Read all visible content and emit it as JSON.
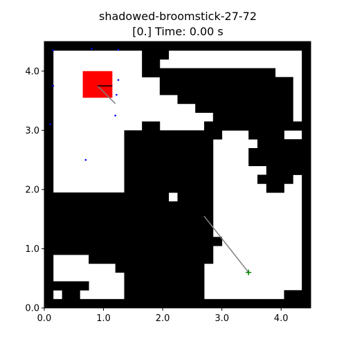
{
  "chart_data": {
    "type": "heatmap",
    "title": "shadowed-broomstick-27-72",
    "subtitle": "[0.] Time: 0.00 s",
    "xlabel": "",
    "ylabel": "",
    "xlim": [
      0.0,
      4.5
    ],
    "ylim": [
      0.0,
      4.5
    ],
    "xticks": [
      "0.0",
      "1.0",
      "2.0",
      "3.0",
      "4.0"
    ],
    "yticks": [
      "0.0",
      "1.0",
      "2.0",
      "3.0",
      "4.0"
    ],
    "grid": false,
    "occupancy_grid": {
      "cols": 30,
      "rows": 30,
      "cell_size": 0.15,
      "origin": [
        0.0,
        0.0
      ],
      "rows_top_to_bottom": [
        "111111111111111111111111111111",
        "100000000001110000000000000001",
        "100000000001100000000000000001",
        "100000000001111111111111110001",
        "100000000000011111111111111101",
        "100000000000011111111111111101",
        "100000000000000111111111111101",
        "100000000000000001111111111101",
        "100000000000000000011111111101",
        "100000000001100000111111111111",
        "100000000111111111110001111001",
        "100000000111111111100000111111",
        "100000000111111111100001111111",
        "100000000111111111100001111111",
        "100000000111111111100000011111",
        "100000000111111111100000111101",
        "100000000111111111100000011001",
        "111111111111110111100000000001",
        "111111111111111111100000000001",
        "111111111111111111100000000001",
        "111111111111111111100000000001",
        "111111111111111111100000000001",
        "111111111111111111110000000001",
        "111111111111111111100000000001",
        "100001111111111111100000000001",
        "100000001111111111000000000001",
        "100000000111111111000000000001",
        "111110000111111111000000000001",
        "101100000111111111000000000111",
        "111111111111111111111111111111"
      ]
    },
    "robot": {
      "x": [
        0.65,
        1.15
      ],
      "y": [
        3.55,
        4.0
      ],
      "color": "#ff0000"
    },
    "heading_segment": {
      "x": [
        0.9,
        1.15
      ],
      "y": [
        3.75,
        3.75
      ],
      "color": "#000000"
    },
    "path_segments": [
      {
        "x": [
          0.9,
          1.2
        ],
        "y": [
          3.75,
          3.45
        ],
        "color": "#808080"
      },
      {
        "x": [
          2.7,
          3.45
        ],
        "y": [
          1.55,
          0.6
        ],
        "color": "#808080"
      }
    ],
    "goal": {
      "x": 3.45,
      "y": 0.6,
      "color": "#008000",
      "marker": "+"
    },
    "blue_points": {
      "color": "#0000ff",
      "x": [
        0.15,
        0.8,
        1.25,
        0.15,
        1.25,
        1.2,
        0.1,
        0.7,
        1.22
      ],
      "y": [
        4.35,
        4.38,
        4.36,
        3.75,
        3.85,
        3.25,
        3.1,
        2.5,
        3.6
      ]
    },
    "colors": {
      "free": "#ffffff",
      "obstacle": "#000000"
    }
  }
}
